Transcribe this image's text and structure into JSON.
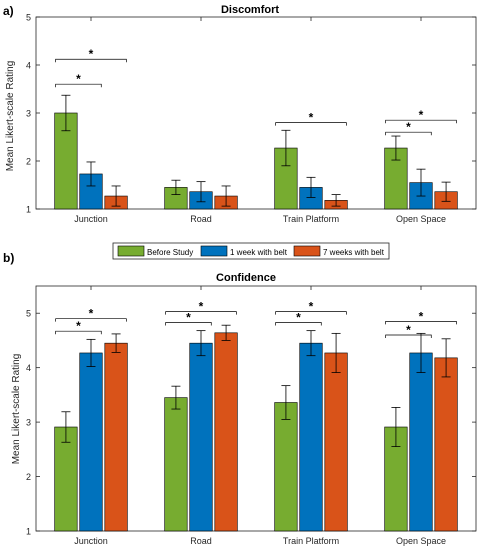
{
  "panel_labels": [
    "a)",
    "b)"
  ],
  "legend": {
    "items": [
      "Before Study",
      "1 week with belt",
      "7 weeks with belt"
    ]
  },
  "colors": {
    "series": [
      "#77AC30",
      "#0072BD",
      "#D95319"
    ],
    "axis": "#262626",
    "error_bar": "#000000"
  },
  "chart_data": [
    {
      "type": "bar",
      "title": "Discomfort",
      "xlabel": "",
      "ylabel": "Mean Likert-scale Rating",
      "categories": [
        "Junction",
        "Road",
        "Train Platform",
        "Open Space"
      ],
      "ylim": [
        1,
        5
      ],
      "yticks": [
        1,
        2,
        3,
        4,
        5
      ],
      "grid": false,
      "series": [
        {
          "name": "Before Study",
          "values": [
            3.0,
            1.45,
            2.27,
            2.27
          ],
          "err_low": [
            2.63,
            1.3,
            1.9,
            2.02
          ],
          "err_high": [
            3.37,
            1.6,
            2.64,
            2.52
          ]
        },
        {
          "name": "1 week with belt",
          "values": [
            1.73,
            1.36,
            1.45,
            1.55
          ],
          "err_low": [
            1.48,
            1.15,
            1.24,
            1.27
          ],
          "err_high": [
            1.98,
            1.57,
            1.66,
            1.83
          ]
        },
        {
          "name": "7 weeks with belt",
          "values": [
            1.27,
            1.27,
            1.18,
            1.36
          ],
          "err_low": [
            1.06,
            1.06,
            1.06,
            1.16
          ],
          "err_high": [
            1.48,
            1.48,
            1.3,
            1.56
          ]
        }
      ],
      "significance": [
        {
          "category": 0,
          "from": 0,
          "to": 1,
          "label": "*",
          "y": 3.6
        },
        {
          "category": 0,
          "from": 0,
          "to": 2,
          "label": "*",
          "y": 4.12
        },
        {
          "category": 2,
          "from": 0,
          "to": 2,
          "label": "*",
          "y": 2.8
        },
        {
          "category": 3,
          "from": 0,
          "to": 1,
          "label": "*",
          "y": 2.6
        },
        {
          "category": 3,
          "from": 0,
          "to": 2,
          "label": "*",
          "y": 2.85
        }
      ]
    },
    {
      "type": "bar",
      "title": "Confidence",
      "xlabel": "",
      "ylabel": "Mean Likert-scale Rating",
      "categories": [
        "Junction",
        "Road",
        "Train Platform",
        "Open Space"
      ],
      "ylim": [
        1,
        5.5
      ],
      "yticks": [
        1,
        2,
        3,
        4,
        5
      ],
      "grid": false,
      "series": [
        {
          "name": "Before Study",
          "values": [
            2.91,
            3.45,
            3.36,
            2.91
          ],
          "err_low": [
            2.63,
            3.24,
            3.05,
            2.55
          ],
          "err_high": [
            3.19,
            3.66,
            3.67,
            3.27
          ]
        },
        {
          "name": "1 week with belt",
          "values": [
            4.27,
            4.45,
            4.45,
            4.27
          ],
          "err_low": [
            4.02,
            4.22,
            4.22,
            3.91
          ],
          "err_high": [
            4.52,
            4.68,
            4.68,
            4.63
          ]
        },
        {
          "name": "7 weeks with belt",
          "values": [
            4.45,
            4.64,
            4.27,
            4.18
          ],
          "err_low": [
            4.28,
            4.5,
            3.91,
            3.83
          ],
          "err_high": [
            4.62,
            4.78,
            4.63,
            4.53
          ]
        }
      ],
      "significance": [
        {
          "category": 0,
          "from": 0,
          "to": 1,
          "label": "*",
          "y": 4.67
        },
        {
          "category": 0,
          "from": 0,
          "to": 2,
          "label": "*",
          "y": 4.9
        },
        {
          "category": 1,
          "from": 0,
          "to": 1,
          "label": "*",
          "y": 4.83
        },
        {
          "category": 1,
          "from": 0,
          "to": 2,
          "label": "*",
          "y": 5.03
        },
        {
          "category": 2,
          "from": 0,
          "to": 1,
          "label": "*",
          "y": 4.83
        },
        {
          "category": 2,
          "from": 0,
          "to": 2,
          "label": "*",
          "y": 5.03
        },
        {
          "category": 3,
          "from": 0,
          "to": 1,
          "label": "*",
          "y": 4.6
        },
        {
          "category": 3,
          "from": 0,
          "to": 2,
          "label": "*",
          "y": 4.85
        }
      ]
    }
  ]
}
